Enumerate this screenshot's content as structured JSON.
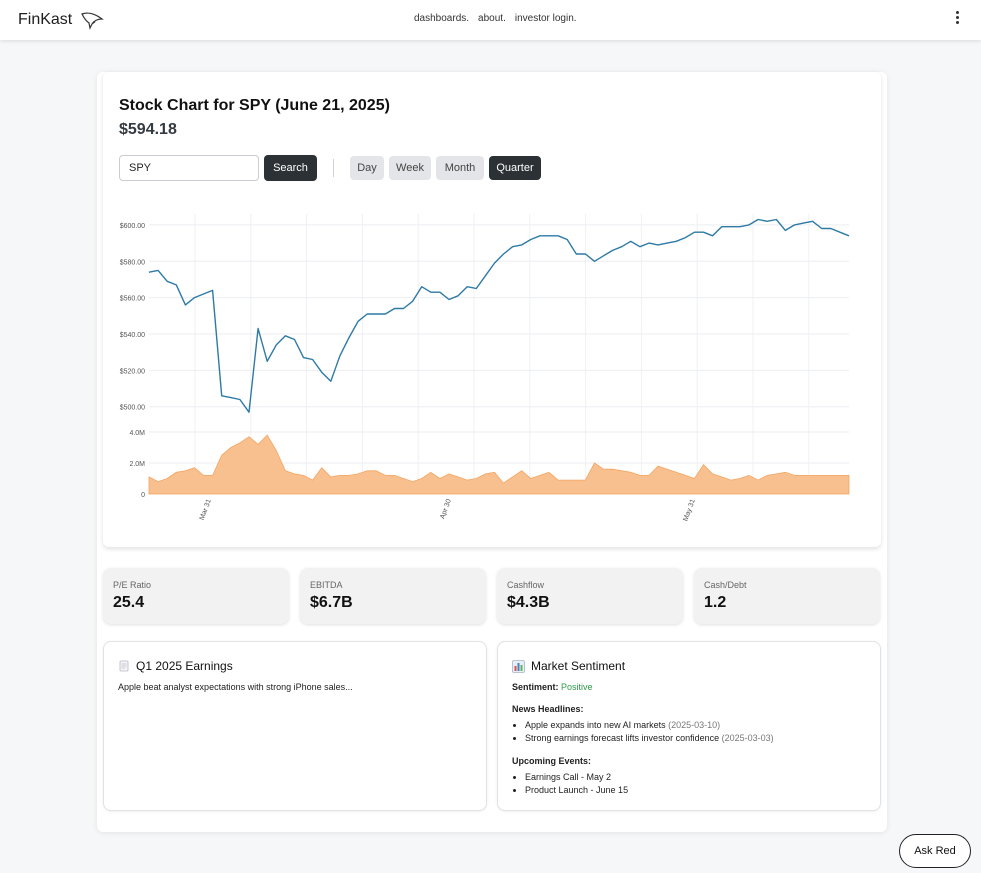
{
  "header": {
    "brand": "FinKast",
    "nav": [
      "dashboards.",
      "about.",
      "investor login."
    ]
  },
  "chart_card": {
    "title": "Stock Chart for SPY (June 21, 2025)",
    "price": "$594.18",
    "search": {
      "value": "SPY",
      "button": "Search"
    },
    "ranges": [
      "Day",
      "Week",
      "Month",
      "Quarter"
    ],
    "active_range": "Quarter"
  },
  "chart_data": {
    "type": "line",
    "series": [
      {
        "values": [
          574,
          575,
          569,
          567,
          556,
          560,
          562,
          564,
          506,
          505,
          504,
          497,
          543,
          525,
          534,
          539,
          537,
          527,
          526,
          519,
          514,
          528,
          538,
          547,
          551,
          551,
          551,
          554,
          554,
          558,
          566,
          563,
          563,
          559,
          561,
          566,
          565,
          572,
          579,
          584,
          588,
          589,
          592,
          594,
          594,
          594,
          592,
          584,
          584,
          580,
          583,
          586,
          588,
          591,
          588,
          590,
          589,
          590,
          591,
          593,
          596,
          596,
          594,
          599,
          599,
          599,
          600,
          603,
          602,
          603,
          597,
          600,
          601,
          602,
          598,
          598,
          596,
          594
        ]
      }
    ],
    "volume": [
      1.1,
      0.8,
      1.0,
      1.4,
      1.5,
      1.7,
      1.2,
      1.2,
      2.5,
      3.0,
      3.3,
      3.7,
      3.2,
      3.8,
      2.8,
      1.5,
      1.3,
      1.2,
      0.9,
      1.7,
      1.1,
      1.2,
      1.2,
      1.3,
      1.5,
      1.5,
      1.2,
      1.2,
      1.0,
      0.8,
      1.0,
      1.4,
      1.0,
      1.3,
      1.1,
      0.9,
      1.0,
      1.3,
      1.4,
      0.7,
      1.1,
      1.5,
      1.0,
      1.2,
      1.4,
      0.9,
      0.9,
      0.9,
      0.9,
      2.0,
      1.6,
      1.6,
      1.5,
      1.4,
      1.2,
      1.2,
      1.8,
      1.6,
      1.4,
      1.2,
      1.0,
      1.9,
      1.3,
      1.1,
      0.9,
      1.0,
      1.2,
      0.9,
      1.2,
      1.3,
      1.4,
      1.2,
      1.2,
      1.2,
      1.2,
      1.2,
      1.2,
      1.2
    ],
    "y_ticks": [
      "$500.00",
      "$520.00",
      "$540.00",
      "$560.00",
      "$580.00",
      "$600.00"
    ],
    "ylim": [
      496,
      606
    ],
    "volume_ticks": [
      "0",
      "2.0M",
      "4.0M"
    ],
    "volume_lim": [
      0,
      4.0
    ],
    "x_ticks": [
      "Mar 31",
      "Apr 30",
      "May 31"
    ],
    "grid": true,
    "colors": {
      "line": "#2d7aa5",
      "volume_fill": "#f9c08f",
      "volume_stroke": "#f3a561"
    }
  },
  "metrics": [
    {
      "label": "P/E Ratio",
      "value": "25.4"
    },
    {
      "label": "EBITDA",
      "value": "$6.7B"
    },
    {
      "label": "Cashflow",
      "value": "$4.3B"
    },
    {
      "label": "Cash/Debt",
      "value": "1.2"
    }
  ],
  "earnings": {
    "title": "Q1 2025 Earnings",
    "icon": "document-icon",
    "text": "Apple beat analyst expectations with strong iPhone sales..."
  },
  "sentiment": {
    "title": "Market Sentiment",
    "icon": "bar-chart-icon",
    "label": "Sentiment:",
    "value": "Positive",
    "headlines_title": "News Headlines:",
    "headlines": [
      {
        "text": "Apple expands into new AI markets",
        "date": "(2025-03-10)"
      },
      {
        "text": "Strong earnings forecast lifts investor confidence",
        "date": "(2025-03-03)"
      }
    ],
    "events_title": "Upcoming Events:",
    "events": [
      "Earnings Call - May 2",
      "Product Launch - June 15"
    ]
  },
  "ask_button": "Ask Red"
}
